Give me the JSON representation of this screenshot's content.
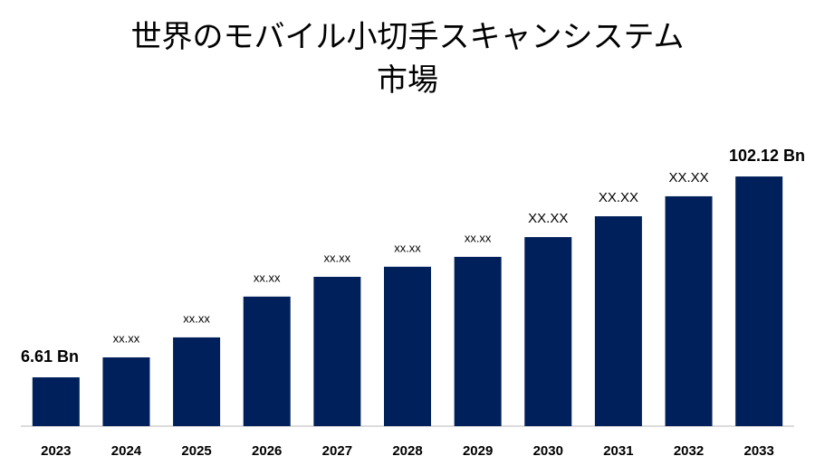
{
  "chart_data": {
    "type": "bar",
    "title": [
      "世界のモバイル小切手スキャンシステム",
      "市場"
    ],
    "categories": [
      "2023",
      "2024",
      "2025",
      "2026",
      "2027",
      "2028",
      "2029",
      "2030",
      "2031",
      "2032",
      "2033"
    ],
    "values": [
      6.61,
      16.1,
      25.6,
      45.0,
      54.4,
      59.2,
      63.9,
      73.3,
      83.2,
      92.7,
      102.12
    ],
    "value_labels": [
      "6.61 Bn",
      "xx.xx",
      "xx.xx",
      "xx.xx",
      "xx.xx",
      "xx.xx",
      "xx.xx",
      "XX.XX",
      "XX.XX",
      "XX.XX",
      "102.12 Bn"
    ],
    "color": "#00205b",
    "ylim": [
      -16.6,
      120
    ]
  }
}
